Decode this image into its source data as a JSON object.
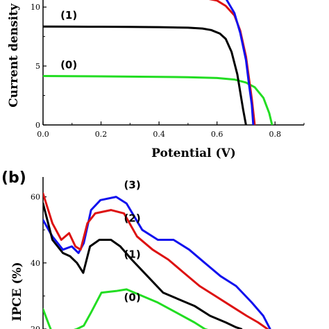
{
  "chart_data": [
    {
      "type": "line",
      "panel_label": "",
      "xlabel": "Potential (V)",
      "ylabel": "Current density",
      "xlim": [
        0,
        0.9
      ],
      "ylim": [
        0,
        10.6
      ],
      "x_ticks": [
        0.0,
        0.2,
        0.4,
        0.6,
        0.8
      ],
      "x_tick_labels": [
        "0.0",
        "0.2",
        "0.4",
        "0.6",
        "0.8"
      ],
      "y_ticks": [
        0,
        5,
        10
      ],
      "y_tick_labels": [
        "0",
        "5",
        "10"
      ],
      "series": [
        {
          "name": "(0)",
          "color": "#22dd22",
          "label_at": [
            0.06,
            4.8
          ],
          "points": [
            [
              0,
              4.15
            ],
            [
              0.1,
              4.14
            ],
            [
              0.2,
              4.12
            ],
            [
              0.3,
              4.1
            ],
            [
              0.4,
              4.08
            ],
            [
              0.5,
              4.05
            ],
            [
              0.6,
              3.98
            ],
            [
              0.66,
              3.85
            ],
            [
              0.7,
              3.6
            ],
            [
              0.73,
              3.2
            ],
            [
              0.76,
              2.3
            ],
            [
              0.78,
              1.0
            ],
            [
              0.79,
              0.0
            ]
          ]
        },
        {
          "name": "(1)",
          "color": "#000000",
          "label_at": [
            0.06,
            9.0
          ],
          "points": [
            [
              0,
              8.35
            ],
            [
              0.1,
              8.34
            ],
            [
              0.2,
              8.33
            ],
            [
              0.3,
              8.32
            ],
            [
              0.4,
              8.3
            ],
            [
              0.5,
              8.25
            ],
            [
              0.55,
              8.18
            ],
            [
              0.58,
              8.05
            ],
            [
              0.61,
              7.75
            ],
            [
              0.63,
              7.3
            ],
            [
              0.65,
              6.2
            ],
            [
              0.67,
              4.3
            ],
            [
              0.68,
              2.8
            ],
            [
              0.69,
              1.3
            ],
            [
              0.7,
              0.0
            ]
          ]
        },
        {
          "name": "",
          "color": "#dd1111",
          "points": [
            [
              0.3,
              10.9
            ],
            [
              0.4,
              10.9
            ],
            [
              0.5,
              10.85
            ],
            [
              0.56,
              10.75
            ],
            [
              0.6,
              10.55
            ],
            [
              0.63,
              10.1
            ],
            [
              0.66,
              9.3
            ],
            [
              0.68,
              8.0
            ],
            [
              0.7,
              5.8
            ],
            [
              0.71,
              4.0
            ],
            [
              0.72,
              2.2
            ],
            [
              0.73,
              0.0
            ]
          ]
        },
        {
          "name": "",
          "color": "#1111ee",
          "points": [
            [
              0.5,
              10.9
            ],
            [
              0.6,
              10.9
            ],
            [
              0.63,
              10.75
            ],
            [
              0.66,
              9.5
            ],
            [
              0.68,
              7.8
            ],
            [
              0.7,
              5.5
            ],
            [
              0.71,
              3.5
            ],
            [
              0.72,
              1.7
            ],
            [
              0.725,
              0.0
            ]
          ]
        }
      ]
    },
    {
      "type": "line",
      "panel_label": "(b)",
      "xlabel": "",
      "ylabel": "IPCE (%)",
      "xlim": [
        300,
        800
      ],
      "ylim": [
        20,
        66
      ],
      "y_ticks": [
        20,
        40,
        60
      ],
      "y_tick_labels": [
        "20",
        "40",
        "60"
      ],
      "series": [
        {
          "name": "(3)",
          "color": "#1111ee",
          "label_at": [
            455,
            62.5
          ],
          "points": [
            [
              300,
              53
            ],
            [
              318,
              48
            ],
            [
              338,
              44
            ],
            [
              355,
              45
            ],
            [
              368,
              43
            ],
            [
              378,
              46
            ],
            [
              392,
              56
            ],
            [
              410,
              59
            ],
            [
              440,
              60
            ],
            [
              460,
              58
            ],
            [
              490,
              50
            ],
            [
              520,
              47
            ],
            [
              550,
              47
            ],
            [
              580,
              44
            ],
            [
              610,
              40
            ],
            [
              640,
              36
            ],
            [
              670,
              33
            ],
            [
              700,
              28
            ],
            [
              722,
              24
            ],
            [
              735,
              20
            ]
          ]
        },
        {
          "name": "(2)",
          "color": "#dd1111",
          "label_at": [
            455,
            52.5
          ],
          "points": [
            [
              300,
              61
            ],
            [
              318,
              52
            ],
            [
              335,
              47
            ],
            [
              350,
              49
            ],
            [
              362,
              45
            ],
            [
              372,
              44
            ],
            [
              385,
              52
            ],
            [
              400,
              55
            ],
            [
              430,
              56
            ],
            [
              455,
              55
            ],
            [
              480,
              48
            ],
            [
              510,
              44
            ],
            [
              540,
              41
            ],
            [
              570,
              37
            ],
            [
              600,
              33
            ],
            [
              630,
              30
            ],
            [
              660,
              27
            ],
            [
              690,
              24
            ],
            [
              712,
              22
            ],
            [
              730,
              20
            ]
          ]
        },
        {
          "name": "(1)",
          "color": "#000000",
          "label_at": [
            455,
            41.5
          ],
          "points": [
            [
              300,
              58
            ],
            [
              318,
              47
            ],
            [
              338,
              43
            ],
            [
              352,
              42
            ],
            [
              365,
              40
            ],
            [
              377,
              37
            ],
            [
              390,
              45
            ],
            [
              408,
              47
            ],
            [
              430,
              47
            ],
            [
              448,
              45
            ],
            [
              470,
              41
            ],
            [
              500,
              36
            ],
            [
              530,
              31
            ],
            [
              560,
              29
            ],
            [
              590,
              27
            ],
            [
              620,
              24
            ],
            [
              650,
              22
            ],
            [
              670,
              20.5
            ],
            [
              680,
              20
            ]
          ]
        },
        {
          "name": "(0)",
          "color": "#22dd22",
          "label_at": [
            455,
            28.5
          ],
          "points": [
            [
              300,
              26
            ],
            [
              312,
              21
            ],
            [
              316,
              19.5
            ],
            [
              355,
              19.5
            ],
            [
              365,
              20
            ],
            [
              378,
              21
            ],
            [
              392,
              25
            ],
            [
              412,
              31
            ],
            [
              440,
              31.5
            ],
            [
              460,
              32
            ],
            [
              490,
              30
            ],
            [
              520,
              28
            ],
            [
              555,
              25
            ],
            [
              590,
              22
            ],
            [
              610,
              20
            ],
            [
              620,
              19.5
            ]
          ]
        }
      ]
    }
  ]
}
